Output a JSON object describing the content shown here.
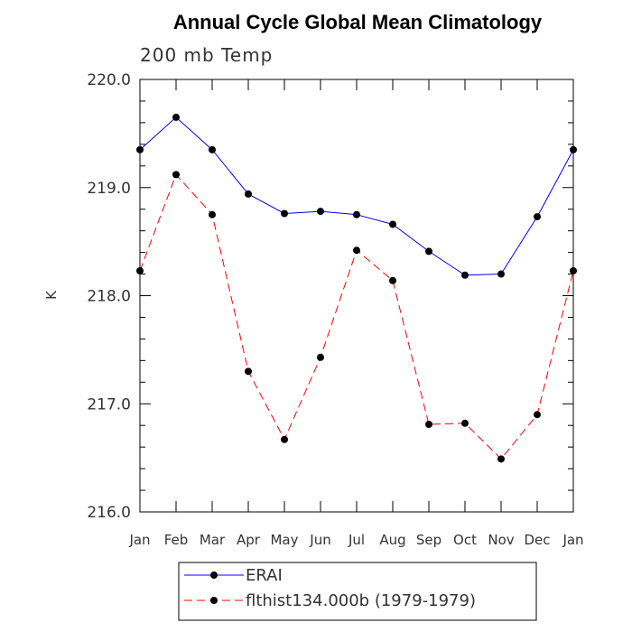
{
  "chart_data": {
    "type": "line",
    "title": "Annual Cycle Global Mean Climatology",
    "subtitle": "200 mb Temp",
    "xlabel": "",
    "ylabel": "K",
    "categories": [
      "Jan",
      "Feb",
      "Mar",
      "Apr",
      "May",
      "Jun",
      "Jul",
      "Aug",
      "Sep",
      "Oct",
      "Nov",
      "Dec",
      "Jan"
    ],
    "ylim": [
      216.0,
      220.0
    ],
    "yticks": [
      "216.0",
      "217.0",
      "218.0",
      "219.0",
      "220.0"
    ],
    "grid": false,
    "legend_position": "bottom",
    "series": [
      {
        "name": "ERAI",
        "color": "#0000ff",
        "dash": "solid",
        "values": [
          219.35,
          219.65,
          219.35,
          218.94,
          218.76,
          218.78,
          218.75,
          218.66,
          218.41,
          218.19,
          218.2,
          218.73,
          219.35
        ]
      },
      {
        "name": "flthist134.000b (1979-1979)",
        "color": "#ff0000",
        "dash": "dashed",
        "values": [
          218.23,
          219.12,
          218.75,
          217.3,
          216.67,
          217.43,
          218.42,
          218.14,
          216.81,
          216.82,
          216.49,
          216.9,
          218.23
        ]
      }
    ]
  }
}
